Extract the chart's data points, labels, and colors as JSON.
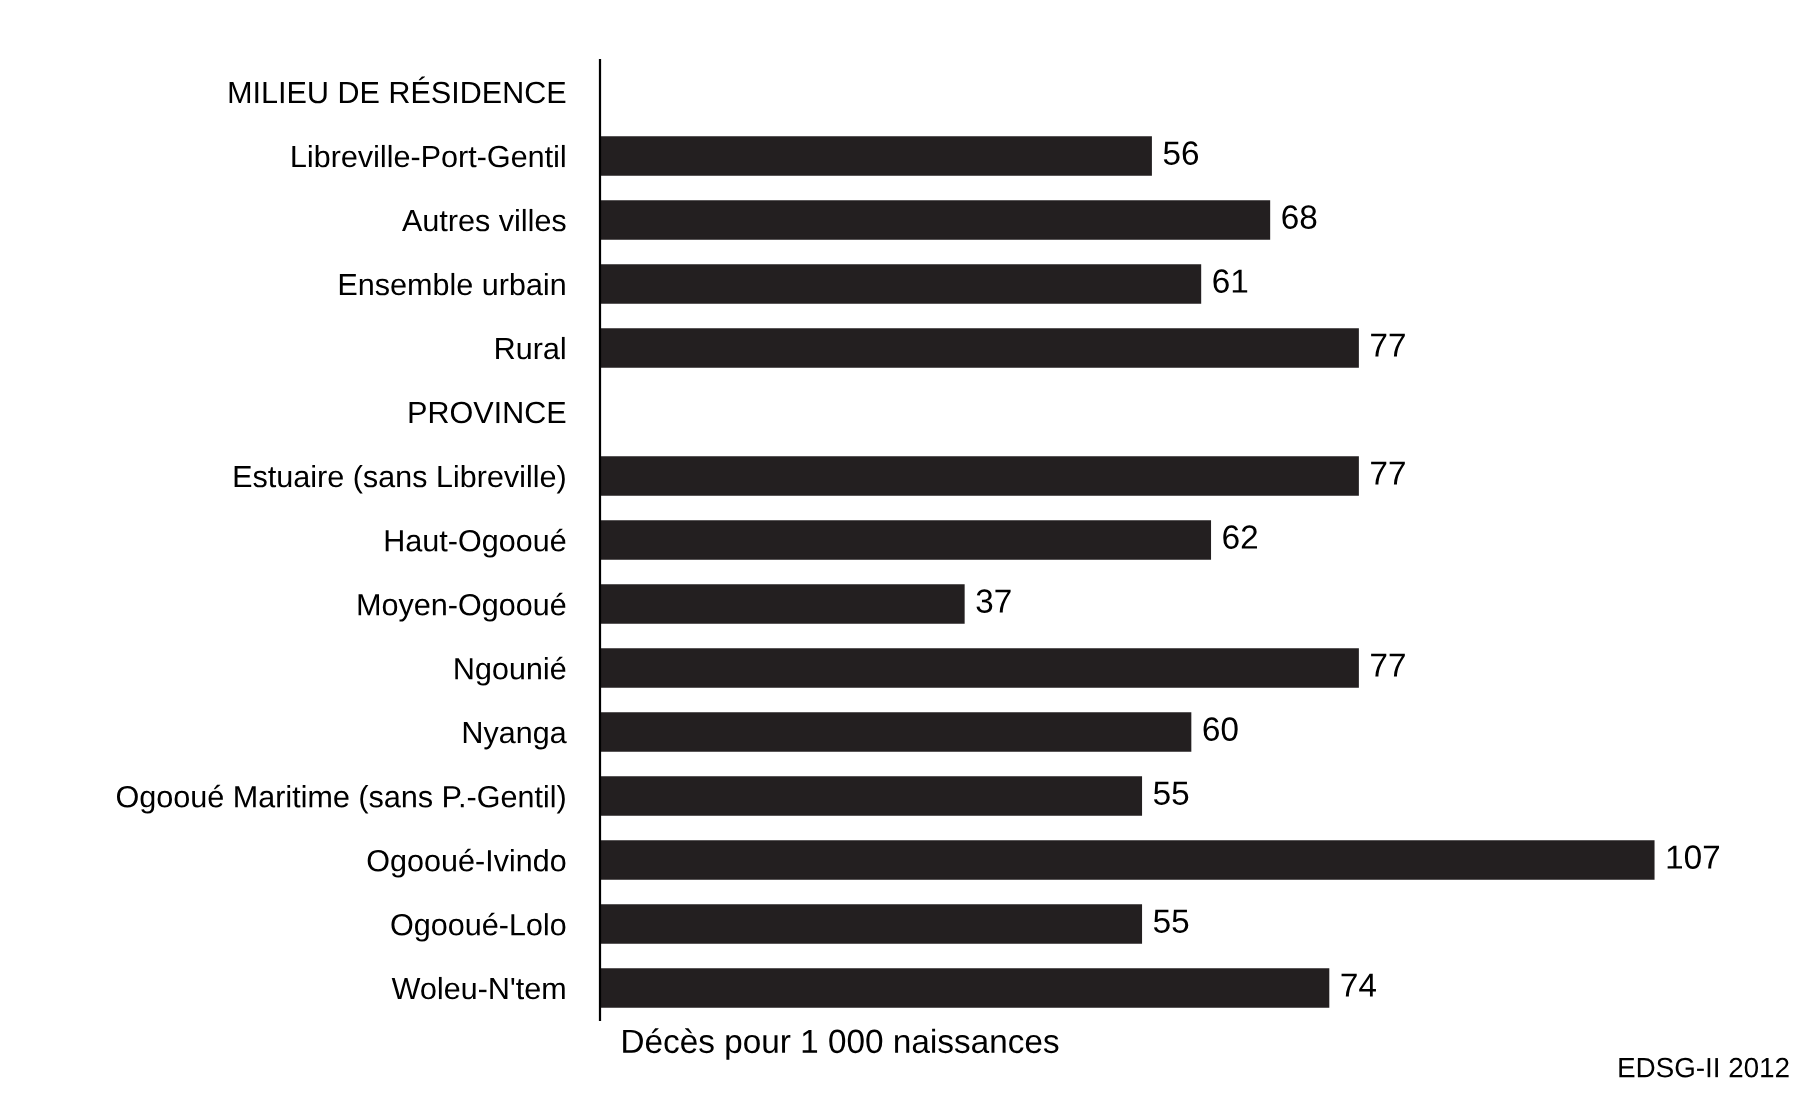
{
  "chart_data": {
    "type": "bar",
    "orientation": "horizontal",
    "xlabel": "Décès pour 1 000 naissances",
    "categories": [
      "MILIEU DE RÉSIDENCE",
      "Libreville-Port-Gentil",
      "Autres villes",
      "Ensemble urbain",
      "Rural",
      "PROVINCE",
      "Estuaire (sans Libreville)",
      "Haut-Ogooué",
      "Moyen-Ogooué",
      "Ngounié",
      "Nyanga",
      "Ogooué Maritime (sans P.-Gentil)",
      "Ogooué-Ivindo",
      "Ogooué-Lolo",
      "Woleu-N'tem"
    ],
    "values": [
      null,
      56,
      68,
      61,
      77,
      null,
      77,
      62,
      37,
      77,
      60,
      55,
      107,
      55,
      74
    ],
    "color": "#231f20",
    "data_labels": true,
    "grid": false,
    "annotations": [
      "EDSG-II 2012"
    ]
  }
}
